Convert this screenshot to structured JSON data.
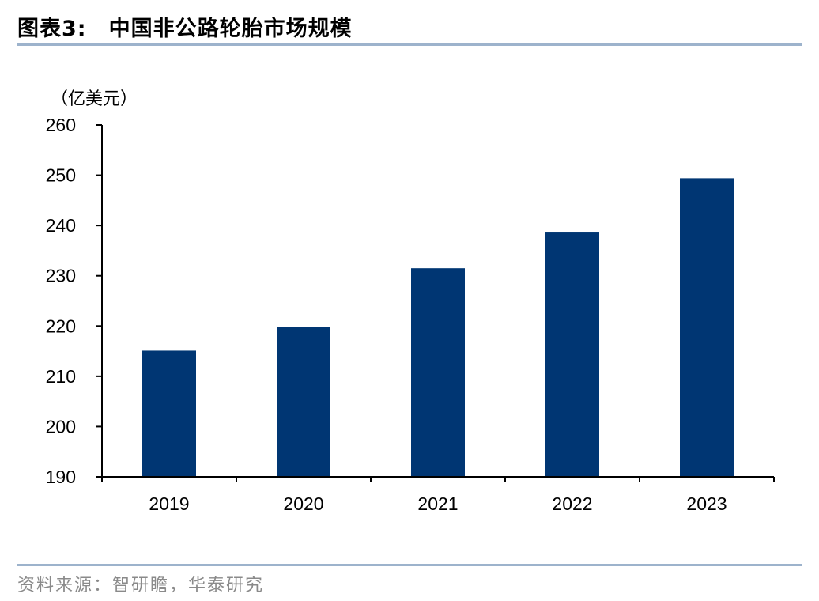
{
  "header": {
    "figure_label": "图表3:",
    "title": "中国非公路轮胎市场规模"
  },
  "footer": {
    "source": "资料来源：智研瞻，华泰研究"
  },
  "colors": {
    "bar": "#003673",
    "rule": "#9db3cc",
    "axis": "#000000"
  },
  "chart_data": {
    "type": "bar",
    "categories": [
      "2019",
      "2020",
      "2021",
      "2022",
      "2023"
    ],
    "values": [
      215.1,
      219.8,
      231.5,
      238.6,
      249.4
    ],
    "unit_label": "（亿美元）",
    "xlabel": "",
    "ylabel": "",
    "ylim": [
      190,
      260
    ],
    "yticks": [
      190,
      200,
      210,
      220,
      230,
      240,
      250,
      260
    ],
    "grid": false,
    "legend": "none"
  }
}
